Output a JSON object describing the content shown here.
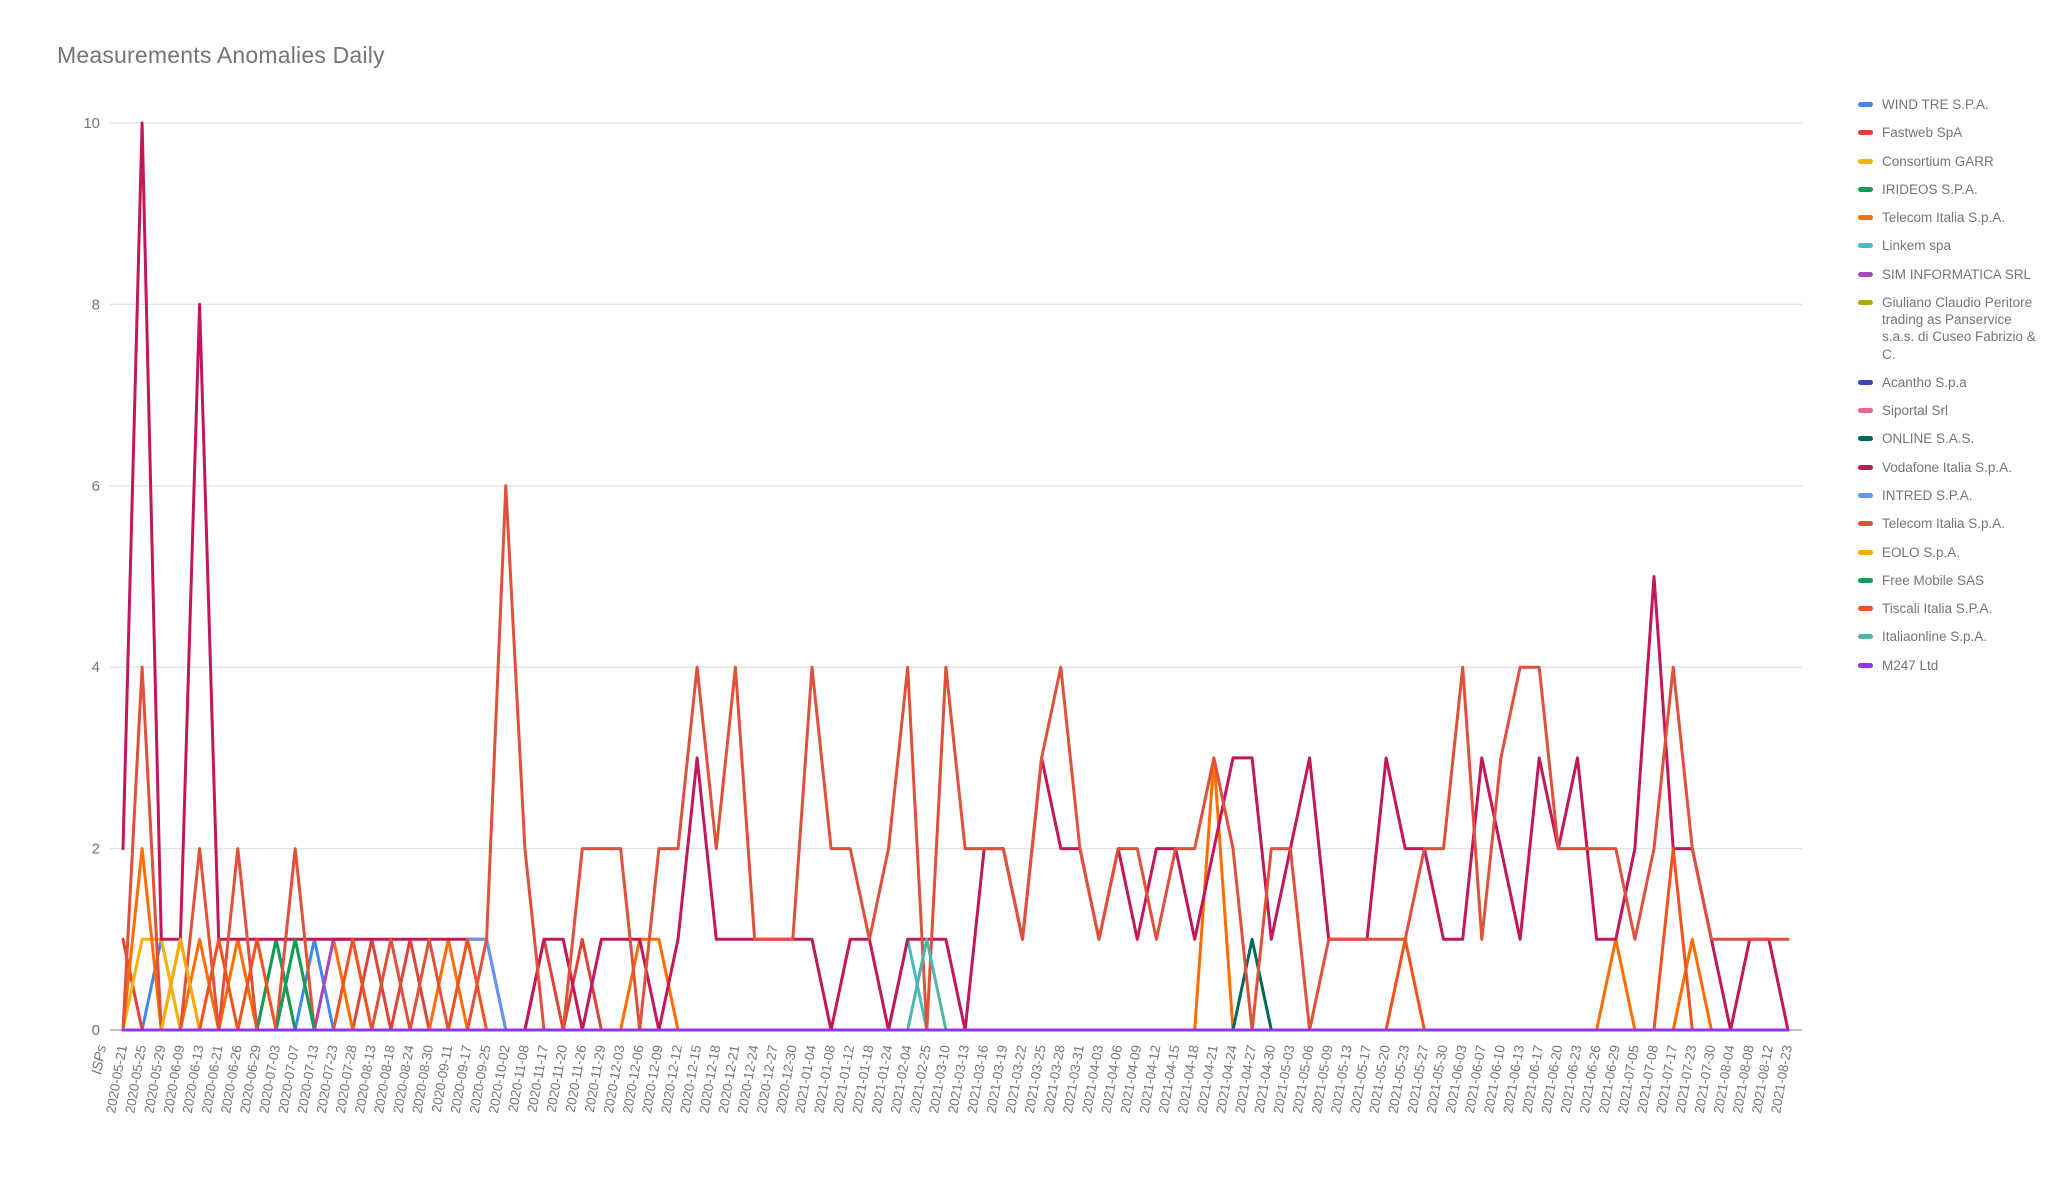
{
  "title": "Measurements Anomalies Daily",
  "text_color": "#757575",
  "grid_color": "#e2e2e2",
  "axis_color": "#9e9e9e",
  "chart_data": {
    "type": "line",
    "x_axis_title": "ISPs",
    "ylim": [
      0,
      10
    ],
    "yticks": [
      0,
      2,
      4,
      6,
      8,
      10
    ],
    "grid": true,
    "legend_position": "right",
    "categories": [
      "2020-05-21",
      "2020-05-25",
      "2020-05-29",
      "2020-06-09",
      "2020-06-13",
      "2020-06-21",
      "2020-06-26",
      "2020-06-29",
      "2020-07-03",
      "2020-07-07",
      "2020-07-13",
      "2020-07-23",
      "2020-07-28",
      "2020-08-13",
      "2020-08-18",
      "2020-08-24",
      "2020-08-30",
      "2020-09-11",
      "2020-09-17",
      "2020-09-25",
      "2020-10-02",
      "2020-11-08",
      "2020-11-17",
      "2020-11-20",
      "2020-11-26",
      "2020-11-29",
      "2020-12-03",
      "2020-12-06",
      "2020-12-09",
      "2020-12-12",
      "2020-12-15",
      "2020-12-18",
      "2020-12-21",
      "2020-12-24",
      "2020-12-27",
      "2020-12-30",
      "2021-01-04",
      "2021-01-08",
      "2021-01-12",
      "2021-01-18",
      "2021-01-24",
      "2021-02-04",
      "2021-02-25",
      "2021-03-10",
      "2021-03-13",
      "2021-03-16",
      "2021-03-19",
      "2021-03-22",
      "2021-03-25",
      "2021-03-28",
      "2021-03-31",
      "2021-04-03",
      "2021-04-06",
      "2021-04-09",
      "2021-04-12",
      "2021-04-15",
      "2021-04-18",
      "2021-04-21",
      "2021-04-24",
      "2021-04-27",
      "2021-04-30",
      "2021-05-03",
      "2021-05-06",
      "2021-05-09",
      "2021-05-13",
      "2021-05-17",
      "2021-05-20",
      "2021-05-23",
      "2021-05-27",
      "2021-05-30",
      "2021-06-03",
      "2021-06-07",
      "2021-06-10",
      "2021-06-13",
      "2021-06-17",
      "2021-06-20",
      "2021-06-23",
      "2021-06-26",
      "2021-06-29",
      "2021-07-05",
      "2021-07-08",
      "2021-07-17",
      "2021-07-23",
      "2021-07-30",
      "2021-08-04",
      "2021-08-08",
      "2021-08-12",
      "2021-08-23"
    ],
    "series": [
      {
        "name": "WIND TRE S.P.A.",
        "color": "#4285F4",
        "points": [
          [
            2,
            1
          ],
          [
            10,
            1
          ]
        ]
      },
      {
        "name": "Fastweb SpA",
        "color": "#DB4437",
        "points": [
          [
            0,
            1
          ],
          [
            3,
            1
          ],
          [
            8,
            1
          ],
          [
            13,
            1
          ],
          [
            15,
            1
          ],
          [
            22,
            1
          ],
          [
            24,
            1
          ]
        ]
      },
      {
        "name": "Consortium GARR",
        "color": "#F4B400",
        "points": [
          [
            1,
            1
          ],
          [
            2,
            1
          ]
        ]
      },
      {
        "name": "IRIDEOS S.P.A.",
        "color": "#0F9D58",
        "points": [
          [
            8,
            1
          ]
        ]
      },
      {
        "name": "Telecom Italia S.p.A.",
        "color": "#FF6D00",
        "points": [
          [
            1,
            2
          ],
          [
            4,
            1
          ],
          [
            6,
            1
          ],
          [
            11,
            1
          ],
          [
            17,
            1
          ],
          [
            27,
            1
          ],
          [
            28,
            1
          ],
          [
            57,
            3
          ],
          [
            78,
            1
          ],
          [
            82,
            1
          ]
        ]
      },
      {
        "name": "Linkem spa",
        "color": "#46BDC6",
        "points": [
          [
            41,
            1
          ]
        ]
      },
      {
        "name": "SIM INFORMATICA SRL",
        "color": "#AB47BC",
        "points": [
          [
            11,
            1
          ],
          [
            12,
            1
          ]
        ]
      },
      {
        "name": "Giuliano Claudio Peritore trading as Panservice s.a.s. di Cuseo Fabrizio & C.",
        "color": "#B3A514",
        "points": [
          [
            9,
            1
          ]
        ]
      },
      {
        "name": "Acantho S.p.a",
        "color": "#3949AB",
        "points": []
      },
      {
        "name": "Siportal Srl",
        "color": "#F06292",
        "points": []
      },
      {
        "name": "ONLINE S.A.S.",
        "color": "#00695C",
        "points": [
          [
            59,
            1
          ]
        ]
      },
      {
        "name": "Vodafone Italia S.p.A.",
        "color": "#C2185B",
        "points": [
          [
            0,
            2
          ],
          [
            1,
            10
          ],
          [
            2,
            1
          ],
          [
            3,
            1
          ],
          [
            4,
            8
          ],
          [
            5,
            1
          ],
          [
            6,
            1
          ],
          [
            7,
            1
          ],
          [
            8,
            1
          ],
          [
            9,
            1
          ],
          [
            10,
            1
          ],
          [
            11,
            1
          ],
          [
            12,
            1
          ],
          [
            13,
            1
          ],
          [
            14,
            1
          ],
          [
            15,
            1
          ],
          [
            16,
            1
          ],
          [
            17,
            1
          ],
          [
            18,
            1
          ],
          [
            19,
            1
          ],
          [
            22,
            1
          ],
          [
            23,
            1
          ],
          [
            25,
            1
          ],
          [
            26,
            1
          ],
          [
            27,
            1
          ],
          [
            29,
            1
          ],
          [
            30,
            3
          ],
          [
            31,
            1
          ],
          [
            32,
            1
          ],
          [
            33,
            1
          ],
          [
            34,
            1
          ],
          [
            35,
            1
          ],
          [
            36,
            1
          ],
          [
            38,
            1
          ],
          [
            39,
            1
          ],
          [
            41,
            1
          ],
          [
            42,
            1
          ],
          [
            43,
            1
          ],
          [
            45,
            2
          ],
          [
            46,
            2
          ],
          [
            47,
            1
          ],
          [
            48,
            3
          ],
          [
            49,
            2
          ],
          [
            50,
            2
          ],
          [
            51,
            1
          ],
          [
            52,
            2
          ],
          [
            53,
            1
          ],
          [
            54,
            2
          ],
          [
            55,
            2
          ],
          [
            56,
            1
          ],
          [
            57,
            2
          ],
          [
            58,
            3
          ],
          [
            59,
            3
          ],
          [
            60,
            1
          ],
          [
            61,
            2
          ],
          [
            62,
            3
          ],
          [
            63,
            1
          ],
          [
            64,
            1
          ],
          [
            65,
            1
          ],
          [
            66,
            3
          ],
          [
            67,
            2
          ],
          [
            68,
            2
          ],
          [
            69,
            1
          ],
          [
            70,
            1
          ],
          [
            71,
            3
          ],
          [
            72,
            2
          ],
          [
            73,
            1
          ],
          [
            74,
            3
          ],
          [
            75,
            2
          ],
          [
            76,
            3
          ],
          [
            77,
            1
          ],
          [
            78,
            1
          ],
          [
            79,
            2
          ],
          [
            80,
            5
          ],
          [
            81,
            2
          ],
          [
            82,
            2
          ],
          [
            83,
            1
          ],
          [
            85,
            1
          ],
          [
            86,
            1
          ]
        ]
      },
      {
        "name": "INTRED S.P.A.",
        "color": "#5E97F6",
        "points": [
          [
            18,
            1
          ],
          [
            19,
            1
          ]
        ]
      },
      {
        "name": "Telecom Italia S.p.A.",
        "color": "#E0513B",
        "points": [
          [
            1,
            4
          ],
          [
            4,
            2
          ],
          [
            6,
            2
          ],
          [
            9,
            2
          ],
          [
            14,
            1
          ],
          [
            16,
            1
          ],
          [
            19,
            1
          ],
          [
            20,
            6
          ],
          [
            21,
            2
          ],
          [
            24,
            2
          ],
          [
            25,
            2
          ],
          [
            26,
            2
          ],
          [
            28,
            2
          ],
          [
            29,
            2
          ],
          [
            30,
            4
          ],
          [
            31,
            2
          ],
          [
            32,
            4
          ],
          [
            33,
            1
          ],
          [
            34,
            1
          ],
          [
            35,
            1
          ],
          [
            36,
            4
          ],
          [
            37,
            2
          ],
          [
            38,
            2
          ],
          [
            39,
            1
          ],
          [
            40,
            2
          ],
          [
            41,
            4
          ],
          [
            43,
            4
          ],
          [
            44,
            2
          ],
          [
            45,
            2
          ],
          [
            46,
            2
          ],
          [
            47,
            1
          ],
          [
            48,
            3
          ],
          [
            49,
            4
          ],
          [
            50,
            2
          ],
          [
            51,
            1
          ],
          [
            52,
            2
          ],
          [
            53,
            2
          ],
          [
            54,
            1
          ],
          [
            55,
            2
          ],
          [
            56,
            2
          ],
          [
            57,
            3
          ],
          [
            58,
            2
          ],
          [
            60,
            2
          ],
          [
            61,
            2
          ],
          [
            63,
            1
          ],
          [
            64,
            1
          ],
          [
            65,
            1
          ],
          [
            66,
            1
          ],
          [
            67,
            1
          ],
          [
            68,
            2
          ],
          [
            69,
            2
          ],
          [
            70,
            4
          ],
          [
            71,
            1
          ],
          [
            72,
            3
          ],
          [
            73,
            4
          ],
          [
            74,
            4
          ],
          [
            75,
            2
          ],
          [
            76,
            2
          ],
          [
            77,
            2
          ],
          [
            78,
            2
          ],
          [
            79,
            1
          ],
          [
            80,
            2
          ],
          [
            81,
            4
          ],
          [
            82,
            2
          ],
          [
            83,
            1
          ],
          [
            84,
            1
          ],
          [
            85,
            1
          ],
          [
            86,
            1
          ],
          [
            87,
            1
          ]
        ]
      },
      {
        "name": "EOLO S.p.A.",
        "color": "#F9AB00",
        "points": [
          [
            3,
            1
          ]
        ]
      },
      {
        "name": "Free Mobile SAS",
        "color": "#109D59",
        "points": [
          [
            9,
            1
          ]
        ]
      },
      {
        "name": "Tiscali Italia S.P.A.",
        "color": "#F4511E",
        "points": [
          [
            5,
            1
          ],
          [
            7,
            1
          ],
          [
            12,
            1
          ],
          [
            18,
            1
          ],
          [
            67,
            1
          ],
          [
            81,
            2
          ]
        ]
      },
      {
        "name": "Italiaonline S.p.A.",
        "color": "#4DB6AC",
        "points": [
          [
            42,
            1
          ]
        ]
      },
      {
        "name": "M247 Ltd",
        "color": "#9334E6",
        "points": []
      }
    ]
  }
}
